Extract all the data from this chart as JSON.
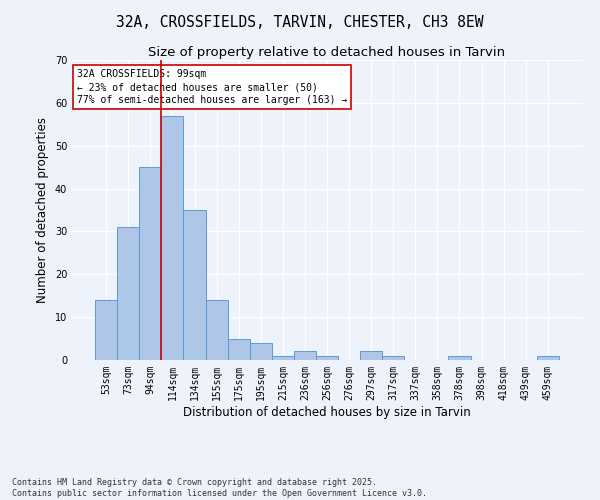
{
  "title": "32A, CROSSFIELDS, TARVIN, CHESTER, CH3 8EW",
  "subtitle": "Size of property relative to detached houses in Tarvin",
  "xlabel": "Distribution of detached houses by size in Tarvin",
  "ylabel": "Number of detached properties",
  "categories": [
    "53sqm",
    "73sqm",
    "94sqm",
    "114sqm",
    "134sqm",
    "155sqm",
    "175sqm",
    "195sqm",
    "215sqm",
    "236sqm",
    "256sqm",
    "276sqm",
    "297sqm",
    "317sqm",
    "337sqm",
    "358sqm",
    "378sqm",
    "398sqm",
    "418sqm",
    "439sqm",
    "459sqm"
  ],
  "values": [
    14,
    31,
    45,
    57,
    35,
    14,
    5,
    4,
    1,
    2,
    1,
    0,
    2,
    1,
    0,
    0,
    1,
    0,
    0,
    0,
    1
  ],
  "bar_color": "#aec6e8",
  "bar_edge_color": "#5b9bd5",
  "background_color": "#eef2fb",
  "grid_color": "#ffffff",
  "vline_x": 2.5,
  "vline_color": "#cc0000",
  "annotation_text": "32A CROSSFIELDS: 99sqm\n← 23% of detached houses are smaller (50)\n77% of semi-detached houses are larger (163) →",
  "annotation_box_color": "#ffffff",
  "annotation_box_edge_color": "#cc0000",
  "ylim": [
    0,
    70
  ],
  "yticks": [
    0,
    10,
    20,
    30,
    40,
    50,
    60,
    70
  ],
  "footer": "Contains HM Land Registry data © Crown copyright and database right 2025.\nContains public sector information licensed under the Open Government Licence v3.0.",
  "title_fontsize": 10.5,
  "subtitle_fontsize": 9.5,
  "xlabel_fontsize": 8.5,
  "ylabel_fontsize": 8.5,
  "tick_fontsize": 7,
  "annotation_fontsize": 7,
  "footer_fontsize": 6
}
